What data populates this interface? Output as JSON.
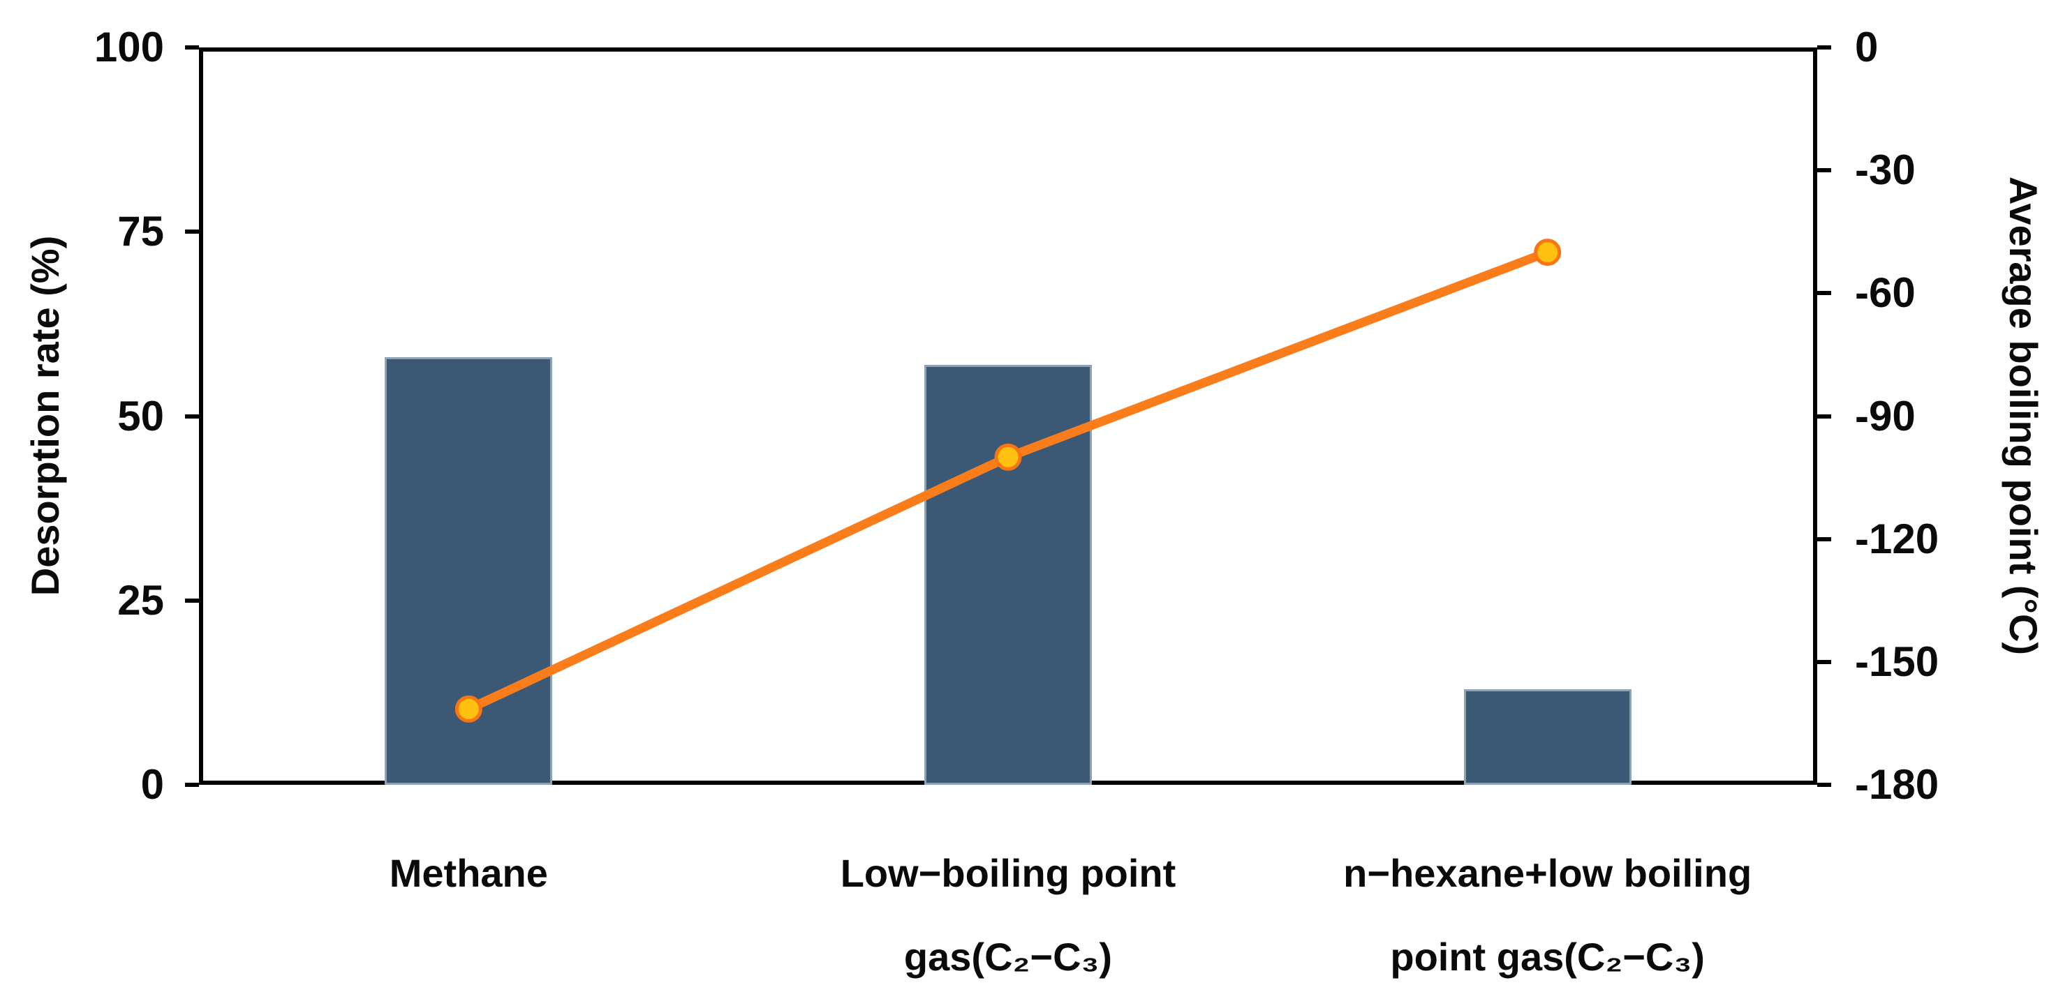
{
  "page": {
    "background": "#ffffff"
  },
  "chart_data": {
    "type": "combo",
    "title": "",
    "grid": false,
    "legend_visible": false,
    "categories": [
      {
        "lines": [
          "Methane"
        ]
      },
      {
        "lines": [
          "Low−boiling point",
          "gas(C₂−C₃)"
        ]
      },
      {
        "lines": [
          "n−hexane+low boiling",
          "point gas(C₂−C₃)"
        ]
      }
    ],
    "left_axis": {
      "label": "Desorption rate (%)",
      "min": 0,
      "max": 100,
      "ticks": [
        0,
        25,
        50,
        75,
        100
      ]
    },
    "right_axis": {
      "label": "Average boiling point (°C)",
      "min": -180,
      "max": 0,
      "ticks": [
        0,
        -30,
        -60,
        -90,
        -120,
        -150,
        -180
      ]
    },
    "series": [
      {
        "name": "Desorption rate (%)",
        "type": "bar",
        "axis": "left",
        "values": [
          58,
          57,
          13
        ],
        "color": "#3B5875",
        "border_color": "#8DA2B4"
      },
      {
        "name": "Average boiling point (°C)",
        "type": "line",
        "axis": "right",
        "values": [
          -161.5,
          -100,
          -50
        ],
        "color": "#FA7D1C",
        "marker_color": "#FFC010",
        "marker_stroke": "#F97513"
      }
    ]
  }
}
